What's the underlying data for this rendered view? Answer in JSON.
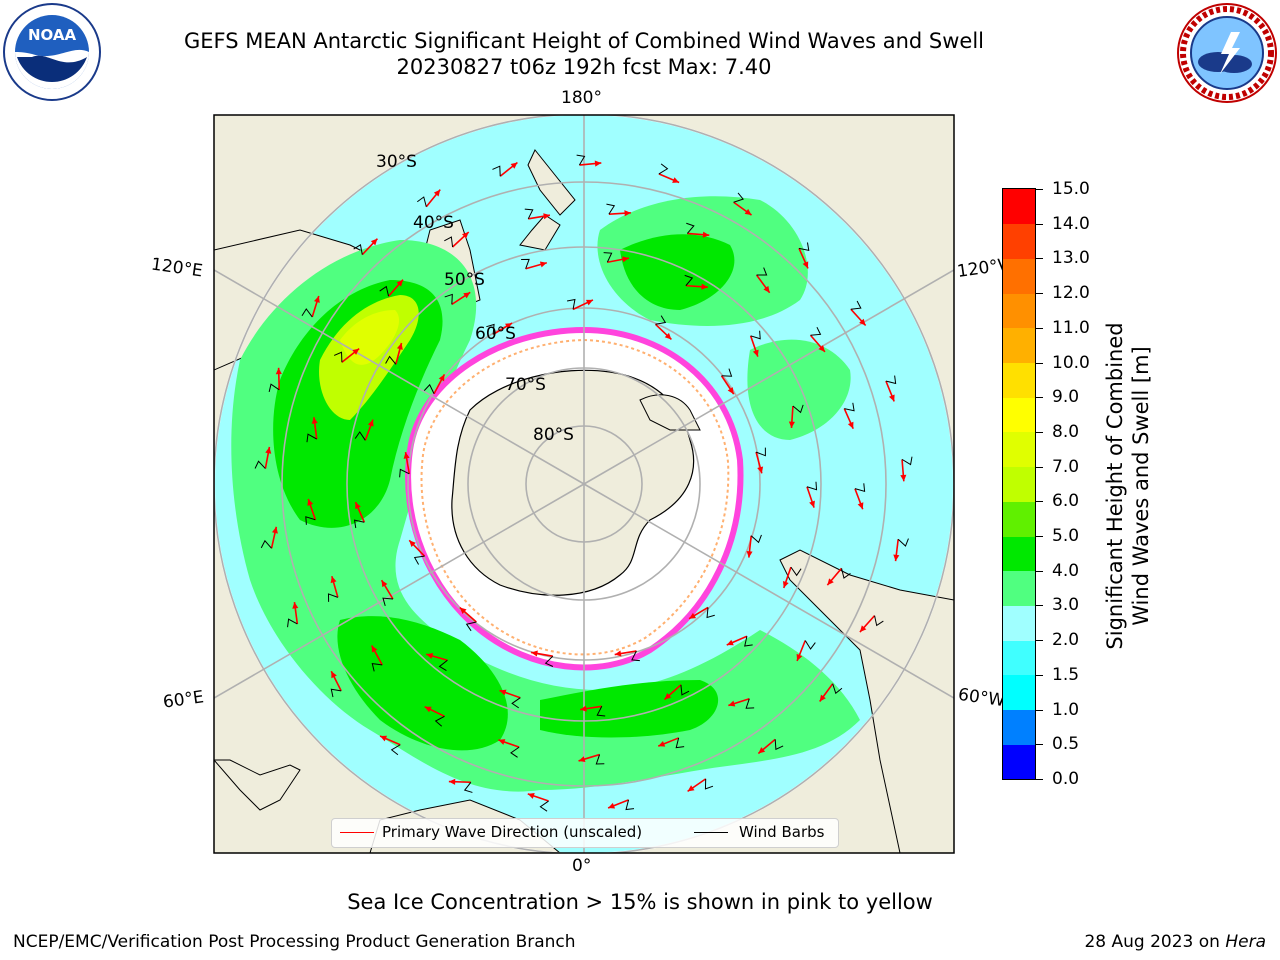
{
  "title": {
    "line1": "GEFS MEAN Antarctic Significant Height of Combined Wind Waves and Swell",
    "line2": "20230827 t06z 192h fcst   Max: 7.40"
  },
  "logos": {
    "left": "noaa-logo",
    "right": "nws-logo",
    "left_text": "NOAA"
  },
  "map": {
    "projection": "south-polar-stereographic",
    "lon_labels": {
      "top": "180°",
      "bottom": "0°",
      "upper_left": "120°E",
      "upper_right": "120°W",
      "lower_left": "60°E",
      "lower_right": "60°W"
    },
    "lat_labels": [
      "30°S",
      "40°S",
      "50°S",
      "60°S",
      "70°S",
      "80°S"
    ]
  },
  "legend": {
    "wave": "Primary Wave Direction (unscaled)",
    "wind": "Wind Barbs",
    "wave_color": "#ff0000",
    "wind_color": "#000000"
  },
  "colorbar": {
    "title_line1": "Significant Height of Combined",
    "title_line2": "Wind Waves and Swell [m]",
    "ticks": [
      "0.0",
      "0.5",
      "1.0",
      "1.5",
      "2.0",
      "3.0",
      "4.0",
      "5.0",
      "6.0",
      "7.0",
      "8.0",
      "9.0",
      "10.0",
      "11.0",
      "12.0",
      "13.0",
      "14.0",
      "15.0"
    ],
    "colors": [
      "#0000ff",
      "#0080ff",
      "#00ffff",
      "#40ffff",
      "#a0ffff",
      "#50ff80",
      "#00e800",
      "#60f000",
      "#c0ff00",
      "#e0ff00",
      "#ffff00",
      "#ffe000",
      "#ffb000",
      "#ff9000",
      "#ff7000",
      "#ff4000",
      "#ff0000"
    ]
  },
  "note": "Sea Ice Concentration > 15% is shown in pink to yellow",
  "footer": {
    "left": "NCEP/EMC/Verification Post Processing Product Generation Branch",
    "date": "28 Aug 2023 on ",
    "machine": "Hera"
  }
}
